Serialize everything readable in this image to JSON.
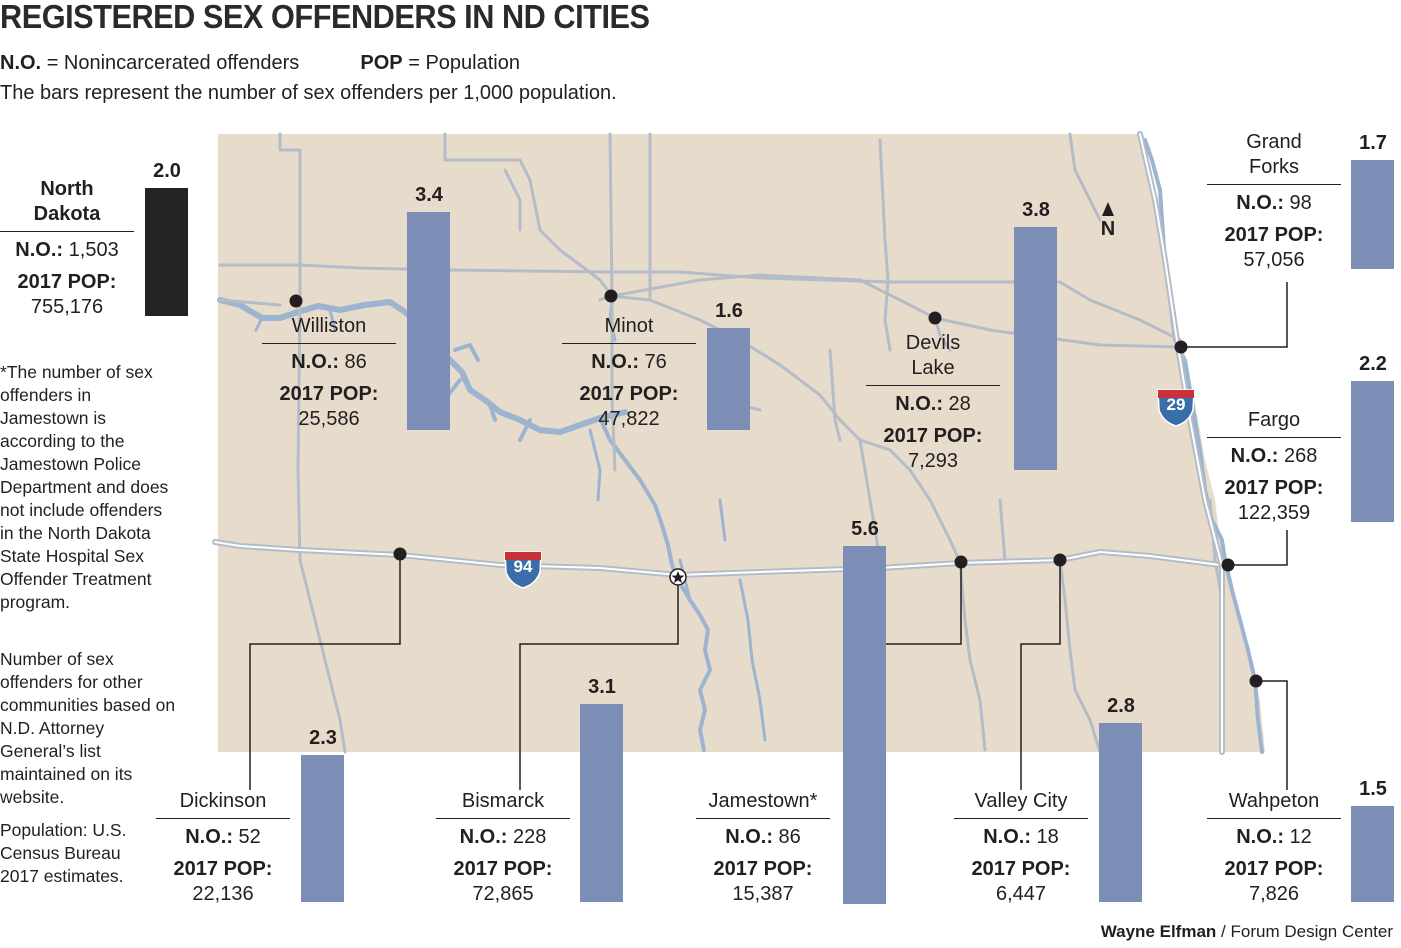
{
  "title": "REGISTERED SEX OFFENDERS IN ND CITIES",
  "legend": {
    "no_abbr": "N.O.",
    "no_text": "= Nonincarcerated offenders",
    "pop_abbr": "POP",
    "pop_text": "= Population",
    "bars_text": "The bars represent the number of sex offenders per 1,000 population."
  },
  "labels": {
    "no_label": "N.O.:",
    "pop_label": "2017 POP:",
    "north": "N"
  },
  "state": {
    "name_line1": "North",
    "name_line2": "Dakota",
    "no": "1,503",
    "pop": "755,176",
    "rate": 2.0,
    "rate_label": "2.0",
    "bar_color": "#232323"
  },
  "cities": [
    {
      "name": "Williston",
      "no": "86",
      "pop": "25,586",
      "rate": 3.4,
      "rate_label": "3.4"
    },
    {
      "name": "Minot",
      "no": "76",
      "pop": "47,822",
      "rate": 1.6,
      "rate_label": "1.6"
    },
    {
      "name_line1": "Devils",
      "name_line2": "Lake",
      "no": "28",
      "pop": "7,293",
      "rate": 3.8,
      "rate_label": "3.8"
    },
    {
      "name_line1": "Grand",
      "name_line2": "Forks",
      "no": "98",
      "pop": "57,056",
      "rate": 1.7,
      "rate_label": "1.7"
    },
    {
      "name": "Fargo",
      "no": "268",
      "pop": "122,359",
      "rate": 2.2,
      "rate_label": "2.2"
    },
    {
      "name": "Dickinson",
      "no": "52",
      "pop": "22,136",
      "rate": 2.3,
      "rate_label": "2.3"
    },
    {
      "name": "Bismarck",
      "no": "228",
      "pop": "72,865",
      "rate": 3.1,
      "rate_label": "3.1"
    },
    {
      "name": "Jamestown*",
      "no": "86",
      "pop": "15,387",
      "rate": 5.6,
      "rate_label": "5.6"
    },
    {
      "name": "Valley City",
      "no": "18",
      "pop": "6,447",
      "rate": 2.8,
      "rate_label": "2.8"
    },
    {
      "name": "Wahpeton",
      "no": "12",
      "pop": "7,826",
      "rate": 1.5,
      "rate_label": "1.5"
    }
  ],
  "highways": {
    "interstate_94": "94",
    "interstate_29": "29"
  },
  "notes": {
    "jamestown": "*The number of sex offenders in Jamestown is according to the Jamestown Police Department and does not include offenders in the North Dakota State Hospital Sex Offender Treatment program.",
    "source_other": "Number of sex offenders for other communities based on N.D. Attorney General’s list maintained on its website.",
    "population": "Population: U.S. Census Bureau 2017 estimates."
  },
  "credit": {
    "author": "Wayne Elfman",
    "org": "/ Forum Design Center"
  },
  "colors": {
    "map_fill": "#e7dccb",
    "road": "#b4bcc8",
    "water": "#9cb4cf",
    "bar": "#7c8db6",
    "state_bar": "#232323"
  }
}
